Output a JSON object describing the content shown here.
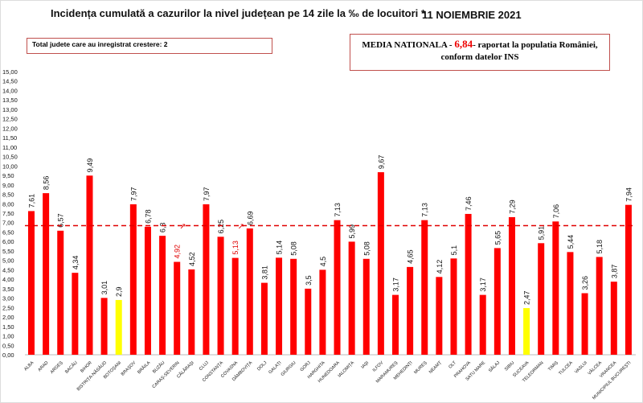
{
  "header": {
    "title": "Incidența cumulată a cazurilor la nivel județean pe 14 zile la ‰ de locuitori *",
    "date": "11 NOIEMBRIE 2021"
  },
  "increase_box": {
    "text": "Total judete care au inregistrat crestere: 2"
  },
  "national_box": {
    "prefix": "MEDIA NATIONALA - ",
    "value": "6,84",
    "suffix": "-  raportat la populatia României,",
    "line2": "conform datelor INS"
  },
  "chart_data": {
    "type": "bar",
    "title": "Incidența cumulată a cazurilor la nivel județean pe 14 zile la ‰ de locuitori *",
    "ylim": [
      0,
      15
    ],
    "ytick_step": 0.5,
    "grid": false,
    "reference_line": {
      "value": 6.84,
      "color": "#e00000",
      "style": "dashed"
    },
    "categories": [
      "ALBA",
      "ARAD",
      "ARGEȘ",
      "BACĂU",
      "BIHOR",
      "BISTRIȚA-NĂSĂUD",
      "BOTOȘANI",
      "BRAȘOV",
      "BRĂILA",
      "BUZĂU",
      "CARAȘ-SEVERIN",
      "CĂLĂRAȘI",
      "CLUJ",
      "CONSTANȚA",
      "COVASNA",
      "DÂMBOVIȚA",
      "DOLJ",
      "GALAȚI",
      "GIURGIU",
      "GORJ",
      "HARGHITA",
      "HUNEDOARA",
      "IALOMIȚA",
      "IAȘI",
      "ILFOV",
      "MARAMUREȘ",
      "MEHEDINȚI",
      "MUREȘ",
      "NEAMȚ",
      "OLT",
      "PRAHOVA",
      "SATU MARE",
      "SĂLAJ",
      "SIBIU",
      "SUCEAVA",
      "TELEORMAN",
      "TIMIȘ",
      "TULCEA",
      "VASLUI",
      "VÂLCEA",
      "VRANCEA",
      "MUNICIPIUL BUCUREȘTI"
    ],
    "values": [
      7.61,
      8.56,
      6.57,
      4.34,
      9.49,
      3.01,
      2.9,
      7.97,
      6.78,
      6.3,
      4.92,
      4.52,
      7.97,
      6.25,
      5.13,
      6.69,
      3.81,
      5.14,
      5.08,
      3.5,
      4.5,
      7.13,
      5.99,
      5.08,
      9.67,
      3.17,
      4.65,
      7.13,
      4.12,
      5.1,
      7.46,
      3.17,
      5.65,
      7.29,
      2.47,
      5.91,
      7.06,
      5.44,
      3.26,
      5.18,
      3.87,
      7.94
    ],
    "data_labels": [
      "7,61",
      "8,56",
      "6,57",
      "4,34",
      "9,49",
      "3,01",
      "2,9",
      "7,97",
      "6,78",
      "6,3",
      "4,92",
      "4,52",
      "7,97",
      "6,25",
      "5,13",
      "6,69",
      "3,81",
      "5,14",
      "5,08",
      "3,5",
      "4,5",
      "7,13",
      "5,99",
      "5,08",
      "9,67",
      "3,17",
      "4,65",
      "7,13",
      "4,12",
      "5,1",
      "7,46",
      "3,17",
      "5,65",
      "7,29",
      "2,47",
      "5,91",
      "7,06",
      "5,44",
      "3,26",
      "5,18",
      "3,87",
      "7,94"
    ],
    "increased": [
      "CARAȘ-SEVERIN",
      "COVASNA"
    ],
    "lowest_highlight": [
      "BOTOȘANI",
      "SUCEAVA"
    ],
    "colors": {
      "bar": "#ff0000",
      "highlight": "#ffff00",
      "increase_label": "#e00000"
    }
  }
}
